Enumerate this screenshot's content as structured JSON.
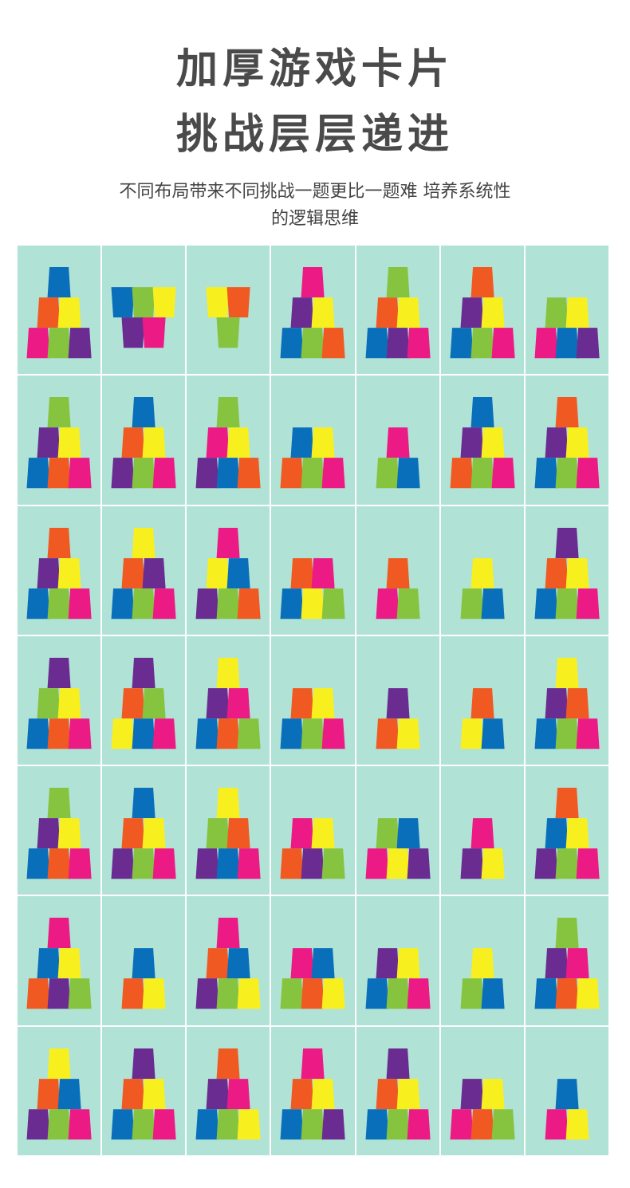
{
  "header": {
    "title_line1": "加厚游戏卡片",
    "title_line2": "挑战层层递进",
    "subtitle_line1": "不同布局带来不同挑战一题更比一题难 培养系统性",
    "subtitle_line2": "的逻辑思维"
  },
  "colors": {
    "card_bg": "#b0e2d6",
    "B": "#0a6fbb",
    "O": "#f05a22",
    "Y": "#f8f01e",
    "G": "#86c440",
    "P": "#ec1a84",
    "V": "#6a2c91"
  },
  "cards": [
    {
      "rows": [
        "B",
        "OY",
        "PGV"
      ]
    },
    {
      "inverted": true,
      "rows": [
        "BGY",
        "VP"
      ]
    },
    {
      "inverted": true,
      "rows": [
        "YO",
        "G"
      ]
    },
    {
      "rows": [
        "P",
        "VY",
        "BGO"
      ]
    },
    {
      "rows": [
        "G",
        "OY",
        "BVP"
      ]
    },
    {
      "rows": [
        "O",
        "VY",
        "BGP"
      ]
    },
    {
      "rows": [
        "GY",
        "PBV"
      ]
    },
    {
      "rows": [
        "G",
        "VY",
        "BOP"
      ]
    },
    {
      "rows": [
        "B",
        "OY",
        "VGP"
      ]
    },
    {
      "rows": [
        "G",
        "PY",
        "VBO"
      ]
    },
    {
      "rows": [
        "BY",
        "OGP"
      ]
    },
    {
      "rows": [
        "P",
        "GB"
      ]
    },
    {
      "rows": [
        "B",
        "VY",
        "OGP"
      ]
    },
    {
      "rows": [
        "O",
        "VY",
        "BGP"
      ]
    },
    {
      "rows": [
        "O",
        "VY",
        "BGP"
      ]
    },
    {
      "rows": [
        "Y",
        "OV",
        "BGP"
      ]
    },
    {
      "rows": [
        "P",
        "YB",
        "VGO"
      ]
    },
    {
      "rows": [
        "OP",
        "BYG"
      ]
    },
    {
      "rows": [
        "O",
        "PG"
      ]
    },
    {
      "rows": [
        "Y",
        "GB"
      ]
    },
    {
      "rows": [
        "V",
        "OY",
        "BGP"
      ]
    },
    {
      "rows": [
        "V",
        "GY",
        "BOP"
      ]
    },
    {
      "rows": [
        "V",
        "OG",
        "YBP"
      ]
    },
    {
      "rows": [
        "Y",
        "VP",
        "BOG"
      ]
    },
    {
      "rows": [
        "OY",
        "BGP"
      ]
    },
    {
      "rows": [
        "V",
        "OY"
      ]
    },
    {
      "rows": [
        "O",
        "YB"
      ]
    },
    {
      "rows": [
        "Y",
        "VO",
        "BGP"
      ]
    },
    {
      "rows": [
        "G",
        "VY",
        "BOP"
      ]
    },
    {
      "rows": [
        "B",
        "OY",
        "VGP"
      ]
    },
    {
      "rows": [
        "Y",
        "GO",
        "VBP"
      ]
    },
    {
      "rows": [
        "PY",
        "OVG"
      ]
    },
    {
      "rows": [
        "GB",
        "PYV"
      ]
    },
    {
      "rows": [
        "P",
        "VY"
      ]
    },
    {
      "rows": [
        "O",
        "BY",
        "VGP"
      ]
    },
    {
      "rows": [
        "P",
        "BY",
        "OVG"
      ]
    },
    {
      "rows": [
        "B",
        "OY"
      ]
    },
    {
      "rows": [
        "P",
        "OB",
        "VGY"
      ]
    },
    {
      "rows": [
        "PB",
        "GOY"
      ]
    },
    {
      "rows": [
        "VY",
        "BGP"
      ]
    },
    {
      "rows": [
        "Y",
        "GB"
      ]
    },
    {
      "rows": [
        "G",
        "VP",
        "BOY"
      ]
    },
    {
      "rows": [
        "Y",
        "OB",
        "VGP"
      ]
    },
    {
      "rows": [
        "V",
        "OY",
        "BGP"
      ]
    },
    {
      "rows": [
        "O",
        "VP",
        "BGY"
      ]
    },
    {
      "rows": [
        "P",
        "OY",
        "BGV"
      ]
    },
    {
      "rows": [
        "V",
        "OY",
        "BGP"
      ]
    },
    {
      "rows": [
        "VY",
        "POG"
      ]
    },
    {
      "rows": [
        "B",
        "PY"
      ]
    }
  ]
}
